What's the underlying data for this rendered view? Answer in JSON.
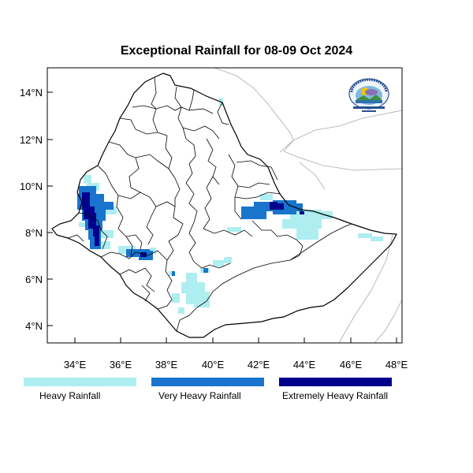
{
  "title": "Exceptional Rainfall for 08-09 Oct 2024",
  "x_ticks": [
    "34°E",
    "36°E",
    "38°E",
    "40°E",
    "42°E",
    "44°E",
    "46°E",
    "48°E"
  ],
  "y_ticks": [
    "4°N",
    "6°N",
    "8°N",
    "10°N",
    "12°N",
    "14°N"
  ],
  "legend": [
    {
      "label": "Heavy Rainfall",
      "color": "#aeeef0"
    },
    {
      "label": "Very Heavy Rainfall",
      "color": "#1874cd"
    },
    {
      "label": "Extremely Heavy Rainfall",
      "color": "#00008b"
    }
  ],
  "logo_icon": "meteorology-agency-logo"
}
